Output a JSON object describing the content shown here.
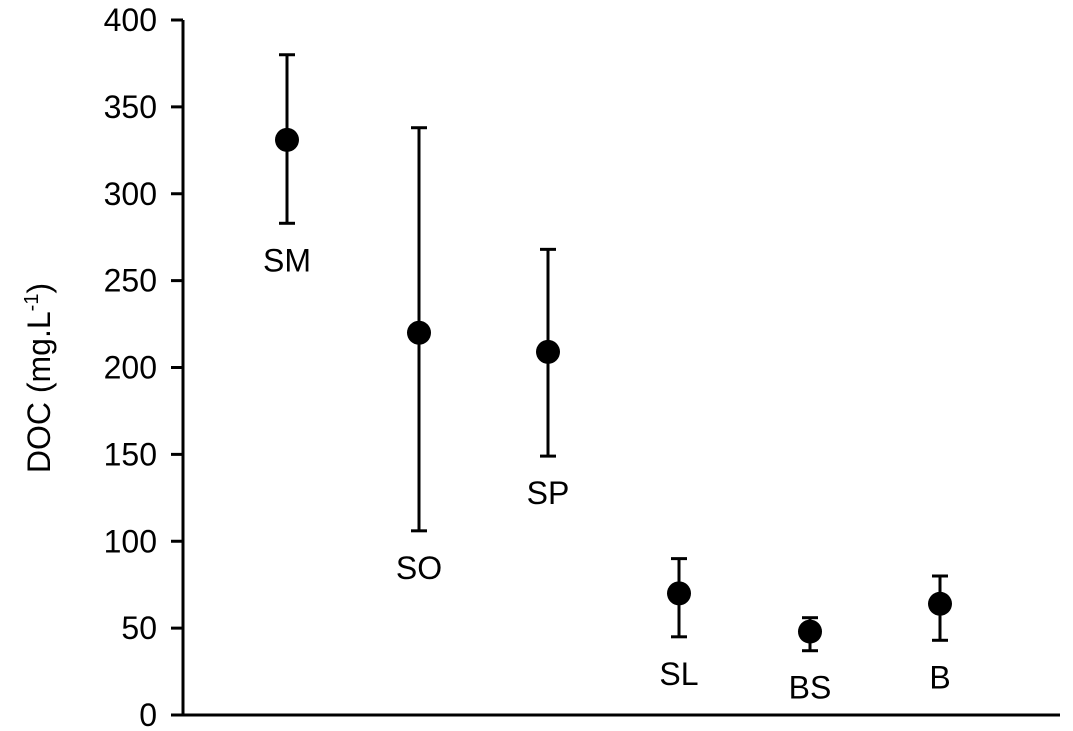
{
  "chart_data": {
    "type": "scatter",
    "ylabel": "DOC (mg.L",
    "ylabel_superscript": "-1",
    "ylabel_suffix": ")",
    "xlabel": "",
    "ylim": [
      0,
      400
    ],
    "yticks": [
      "0",
      "50",
      "100",
      "150",
      "200",
      "250",
      "300",
      "350",
      "400"
    ],
    "grid": false,
    "points": [
      {
        "label": "SM",
        "value": 331,
        "error_low": 283,
        "error_high": 380,
        "label_pos": "below"
      },
      {
        "label": "SO",
        "value": 220,
        "error_low": 106,
        "error_high": 338,
        "label_pos": "below"
      },
      {
        "label": "SP",
        "value": 209,
        "error_low": 149,
        "error_high": 268,
        "label_pos": "below"
      },
      {
        "label": "SL",
        "value": 70,
        "error_low": 45,
        "error_high": 90,
        "label_pos": "below"
      },
      {
        "label": "BS",
        "value": 48,
        "error_low": 37,
        "error_high": 56,
        "label_pos": "below"
      },
      {
        "label": "B",
        "value": 64,
        "error_low": 43,
        "error_high": 80,
        "label_pos": "below"
      }
    ],
    "colors": {
      "marker": "#000000",
      "axis": "#000000"
    }
  }
}
